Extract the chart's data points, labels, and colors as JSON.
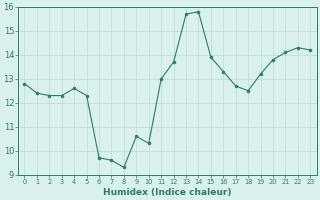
{
  "x": [
    0,
    1,
    2,
    3,
    4,
    5,
    6,
    7,
    8,
    9,
    10,
    11,
    12,
    13,
    14,
    15,
    16,
    17,
    18,
    19,
    20,
    21,
    22,
    23
  ],
  "y": [
    12.8,
    12.4,
    12.3,
    12.3,
    12.6,
    12.3,
    9.7,
    9.6,
    9.3,
    10.6,
    10.3,
    13.0,
    13.7,
    15.7,
    15.8,
    13.9,
    13.3,
    12.7,
    12.5,
    13.2,
    13.8,
    14.1,
    14.3,
    14.2
  ],
  "line_color": "#2d7a6e",
  "marker": "o",
  "marker_size": 2,
  "bg_color": "#d9f0ee",
  "grid_color": "#b8dbd8",
  "xlabel": "Humidex (Indice chaleur)",
  "ylim": [
    9,
    16
  ],
  "xlim": [
    -0.5,
    23.5
  ],
  "yticks": [
    9,
    10,
    11,
    12,
    13,
    14,
    15,
    16
  ],
  "xticks": [
    0,
    1,
    2,
    3,
    4,
    5,
    6,
    7,
    8,
    9,
    10,
    11,
    12,
    13,
    14,
    15,
    16,
    17,
    18,
    19,
    20,
    21,
    22,
    23
  ],
  "xlabel_fontsize": 6.5,
  "xlabel_bold": true,
  "xtick_fontsize": 4.8,
  "ytick_fontsize": 6.0,
  "linewidth": 0.8
}
